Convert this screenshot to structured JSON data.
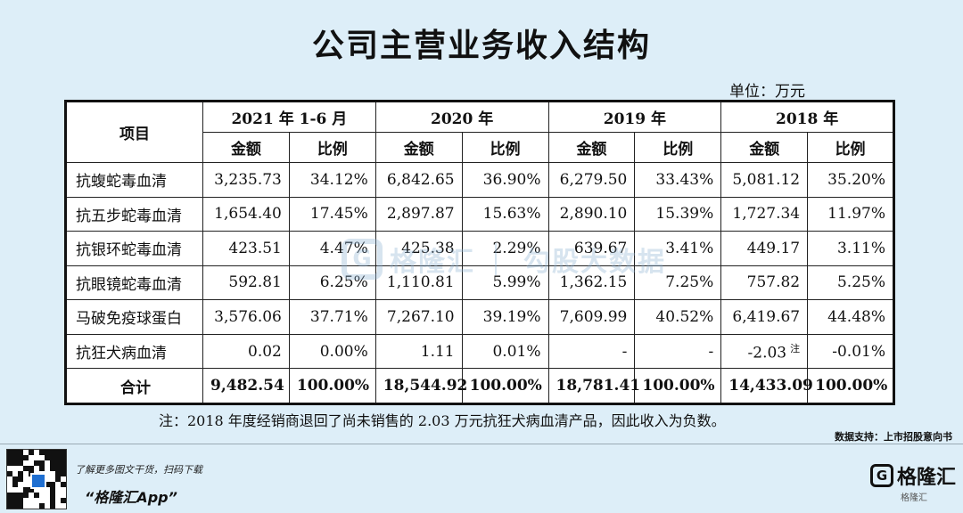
{
  "title": "公司主营业务收入结构",
  "unit": "单位：万元",
  "table": {
    "item_header": "项目",
    "periods": [
      "2021 年 1-6 月",
      "2020 年",
      "2019 年",
      "2018 年"
    ],
    "sub_amount": "金额",
    "sub_ratio": "比例",
    "rows": [
      {
        "name": "抗蝮蛇毒血清",
        "cells": [
          "3,235.73",
          "34.12%",
          "6,842.65",
          "36.90%",
          "6,279.50",
          "33.43%",
          "5,081.12",
          "35.20%"
        ]
      },
      {
        "name": "抗五步蛇毒血清",
        "cells": [
          "1,654.40",
          "17.45%",
          "2,897.87",
          "15.63%",
          "2,890.10",
          "15.39%",
          "1,727.34",
          "11.97%"
        ]
      },
      {
        "name": "抗银环蛇毒血清",
        "cells": [
          "423.51",
          "4.47%",
          "425.38",
          "2.29%",
          "639.67",
          "3.41%",
          "449.17",
          "3.11%"
        ]
      },
      {
        "name": "抗眼镜蛇毒血清",
        "cells": [
          "592.81",
          "6.25%",
          "1,110.81",
          "5.99%",
          "1,362.15",
          "7.25%",
          "757.82",
          "5.25%"
        ]
      },
      {
        "name": "马破免疫球蛋白",
        "cells": [
          "3,576.06",
          "37.71%",
          "7,267.10",
          "39.19%",
          "7,609.99",
          "40.52%",
          "6,419.67",
          "44.48%"
        ]
      },
      {
        "name": "抗狂犬病血清",
        "cells": [
          "0.02",
          "0.00%",
          "1.11",
          "0.01%",
          "-",
          "-",
          "-2.03",
          "-0.01%"
        ],
        "note_mark": "注"
      },
      {
        "name": "合计",
        "cells": [
          "9,482.54",
          "100.00%",
          "18,544.92",
          "100.00%",
          "18,781.41",
          "100.00%",
          "14,433.09",
          "100.00%"
        ]
      }
    ]
  },
  "footnote": "注：2018 年度经销商退回了尚未销售的 2.03 万元抗狂犬病血清产品，因此收入为负数。",
  "source": "数据支持：上市招股意向书",
  "promo": {
    "line1": "了解更多图文干货，扫码下载",
    "line2": "“格隆汇App”"
  },
  "brand": {
    "name": "格隆汇",
    "mark_letter": "G",
    "sub": "格隆汇"
  },
  "watermark": {
    "name": "格隆汇",
    "tagline": "勾股大数据",
    "mark_letter": "G"
  },
  "colors": {
    "background": "#ddeef8",
    "table_background": "#ffffff",
    "border": "#111111",
    "watermark": "#8eb3d3",
    "qr_logo": "#1f6fd1"
  }
}
